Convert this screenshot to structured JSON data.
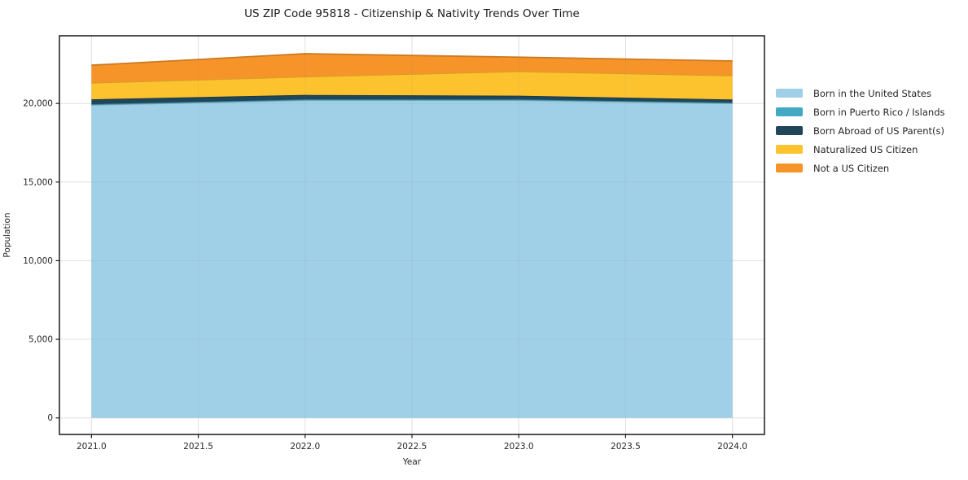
{
  "title": "US ZIP Code 95818 - Citizenship & Nativity Trends Over Time",
  "colors": {
    "background": "#ffffff",
    "spine": "#1a1a1a",
    "tick": "#1a1a1a",
    "text": "#262626",
    "grid": "#ebebeb",
    "grid_overlay": "rgba(120,120,120,0.10)"
  },
  "chart_data": {
    "type": "area",
    "stacked": true,
    "title": "US ZIP Code 95818 - Citizenship & Nativity Trends Over Time",
    "xlabel": "Year",
    "ylabel": "Population",
    "x": [
      2021,
      2022,
      2023,
      2024
    ],
    "series": [
      {
        "name": "Born in the United States",
        "color": "#a0d0e7",
        "values": [
          19900,
          20200,
          20200,
          20000
        ]
      },
      {
        "name": "Born in Puerto Rico / Islands",
        "color": "#41a9c4",
        "values": [
          50,
          50,
          50,
          50
        ]
      },
      {
        "name": "Born Abroad of US Parent(s)",
        "color": "#1f4659",
        "values": [
          310,
          290,
          240,
          200
        ]
      },
      {
        "name": "Naturalized US Citizen",
        "color": "#fcc32f",
        "values": [
          1050,
          1160,
          1550,
          1520
        ]
      },
      {
        "name": "Not a US Citizen",
        "color": "#f79429",
        "values": [
          1120,
          1460,
          900,
          930
        ]
      }
    ],
    "totals": [
      22430,
      23160,
      22940,
      22650
    ],
    "xlim": [
      2020.85,
      2024.15
    ],
    "ylim": [
      -1050,
      24300
    ],
    "x_ticks": [
      {
        "v": 2021.0,
        "label": "2021.0"
      },
      {
        "v": 2021.5,
        "label": "2021.5"
      },
      {
        "v": 2022.0,
        "label": "2022.0"
      },
      {
        "v": 2022.5,
        "label": "2022.5"
      },
      {
        "v": 2023.0,
        "label": "2023.0"
      },
      {
        "v": 2023.5,
        "label": "2023.5"
      },
      {
        "v": 2024.0,
        "label": "2024.0"
      }
    ],
    "y_ticks": [
      {
        "v": 0,
        "label": "0"
      },
      {
        "v": 5000,
        "label": "5,000"
      },
      {
        "v": 10000,
        "label": "10,000"
      },
      {
        "v": 15000,
        "label": "15,000"
      },
      {
        "v": 20000,
        "label": "20,000"
      }
    ],
    "grid": true,
    "legend_position": "outside-right"
  }
}
